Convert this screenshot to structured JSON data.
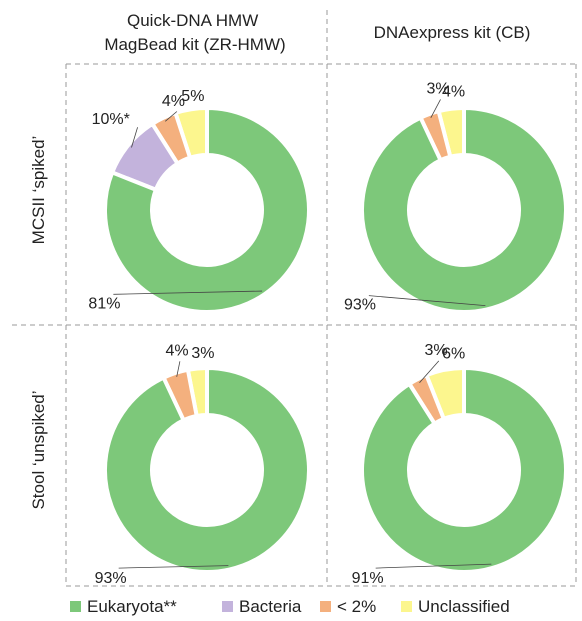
{
  "chart_data": {
    "type": "pie",
    "columns": [
      {
        "title_lines": [
          "Quick-DNA HMW",
          "MagBead kit (ZR-HMW)"
        ]
      },
      {
        "title_lines": [
          "DNAexpress kit (CB)"
        ]
      }
    ],
    "rows": [
      {
        "title": "MCSII ‘spiked’"
      },
      {
        "title": "Stool ‘unspiked’"
      }
    ],
    "legend": [
      {
        "name": "Eukaryota**",
        "color": "#7dc87a"
      },
      {
        "name": "Bacteria",
        "color": "#c3b3dc"
      },
      {
        "name": "< 2%",
        "color": "#f4b07e"
      },
      {
        "name": "Unclassified",
        "color": "#fcf68e"
      }
    ],
    "panels": [
      {
        "row": "MCSII ‘spiked’",
        "column": "ZR-HMW",
        "values": {
          "Eukaryota**": 81,
          "Bacteria": 10,
          "< 2%": 4,
          "Unclassified": 5
        },
        "labels": {
          "Eukaryota**": "81%",
          "Bacteria": "10%*",
          "< 2%": "4%",
          "Unclassified": "5%"
        }
      },
      {
        "row": "MCSII ‘spiked’",
        "column": "CB",
        "values": {
          "Eukaryota**": 93,
          "Bacteria": 0,
          "< 2%": 3,
          "Unclassified": 4
        },
        "labels": {
          "Eukaryota**": "93%",
          "< 2%": "3%",
          "Unclassified": "4%"
        }
      },
      {
        "row": "Stool ‘unspiked’",
        "column": "ZR-HMW",
        "values": {
          "Eukaryota**": 93,
          "Bacteria": 0,
          "< 2%": 4,
          "Unclassified": 3
        },
        "labels": {
          "Eukaryota**": "93%",
          "< 2%": "4%",
          "Unclassified": "3%"
        }
      },
      {
        "row": "Stool ‘unspiked’",
        "column": "CB",
        "values": {
          "Eukaryota**": 91,
          "Bacteria": 0,
          "< 2%": 3,
          "Unclassified": 6
        },
        "labels": {
          "Eukaryota**": "91%",
          "< 2%": "3%",
          "Unclassified": "6%"
        }
      }
    ]
  }
}
